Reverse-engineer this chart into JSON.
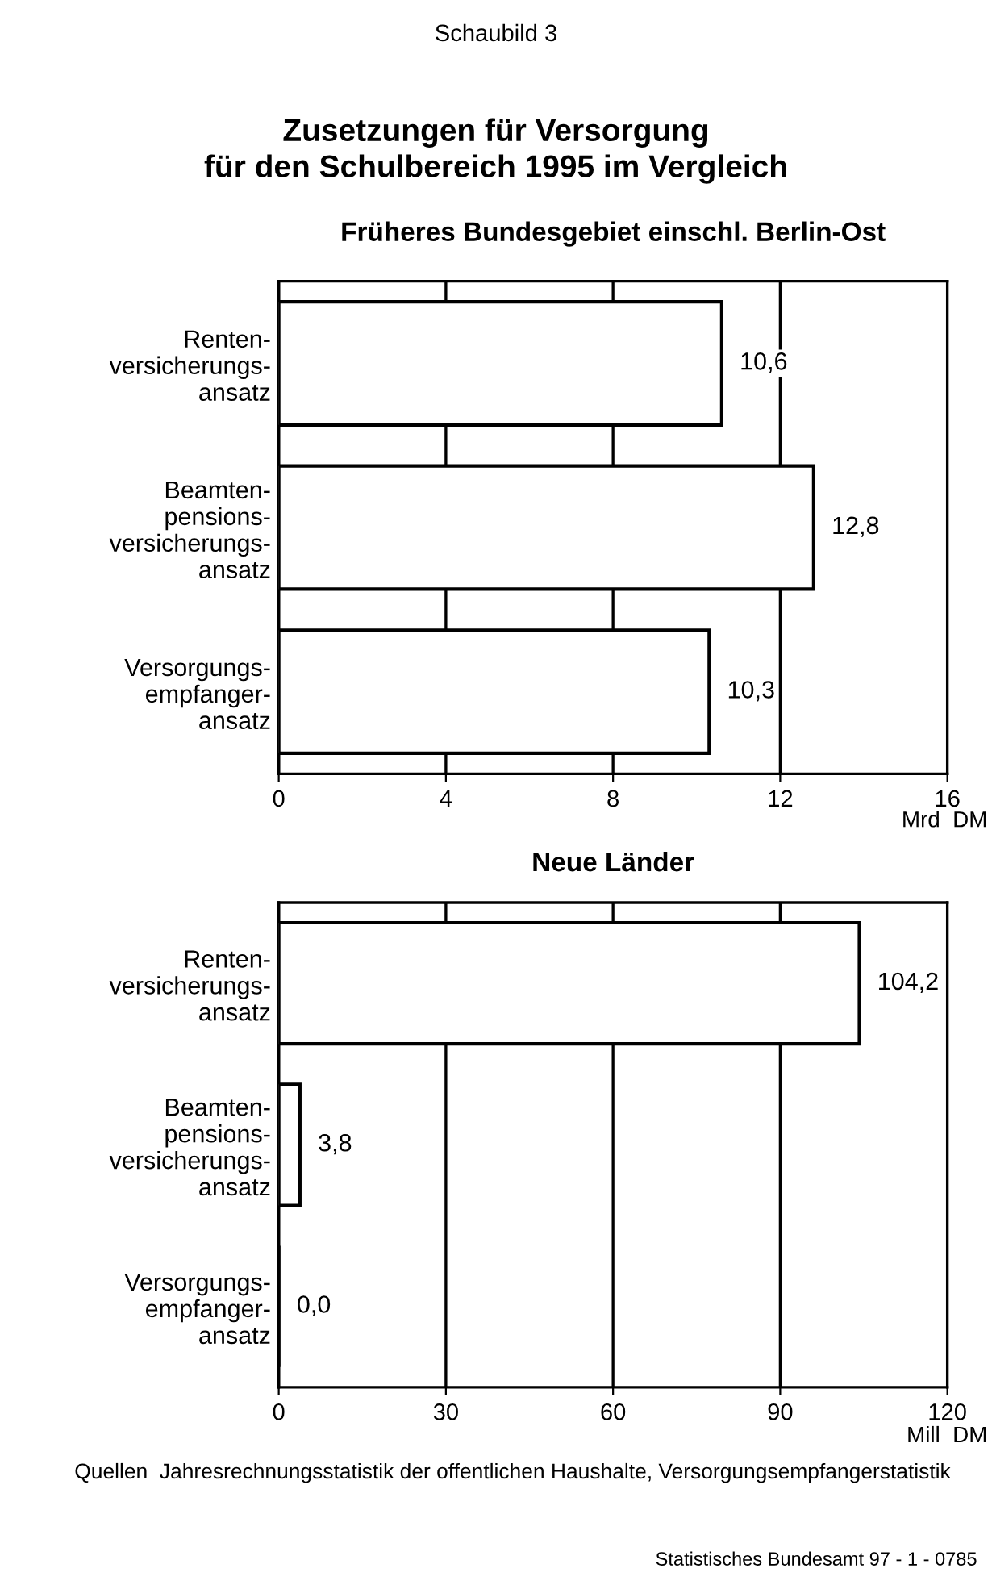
{
  "chart_data": [
    {
      "type": "bar",
      "orientation": "horizontal",
      "title": "Zusetzungen für Versorgung\nfür den Schulbereich 1995 im Vergleich",
      "subtitle": "Früheres Bundesgebiet einschl. Berlin-Ost",
      "categories": [
        "Renten-\nversicherungs-\nansatz",
        "Beamten-\npensions-\nversicherungs-\nansatz",
        "Versorgungs-\nempfanger-\nansatz"
      ],
      "values": [
        10.6,
        12.8,
        10.3
      ],
      "value_labels": [
        "10,6",
        "12,8",
        "10,3"
      ],
      "color": "#ffffff",
      "xlim": [
        0,
        16
      ],
      "xticks": [
        0,
        4,
        8,
        12,
        16
      ],
      "xlabel": "Mrd  DM",
      "grid": "x",
      "legend": false,
      "annotations": [
        "Schaubild 3"
      ]
    },
    {
      "type": "bar",
      "orientation": "horizontal",
      "title": "Neue Länder",
      "categories": [
        "Renten-\nversicherungs-\nansatz",
        "Beamten-\npensions-\nversicherungs-\nansatz",
        "Versorgungs-\nempfanger-\nansatz"
      ],
      "values": [
        104.2,
        3.8,
        0.0
      ],
      "value_labels": [
        "104,2",
        "3,8",
        "0,0"
      ],
      "colors": [
        "#ffffff",
        "#ffffff",
        "#000000"
      ],
      "xlim": [
        0,
        120
      ],
      "xticks": [
        0,
        30,
        60,
        90,
        120
      ],
      "xlabel": "Mill  DM",
      "grid": "x",
      "legend": false,
      "annotations": [
        "Quellen  Jahresrechnungsstatistik der offentlichen Haushalte, Versorgungsempfangerstatistik",
        "Statistisches Bundesamt 97 - 1 - 0785"
      ]
    }
  ]
}
